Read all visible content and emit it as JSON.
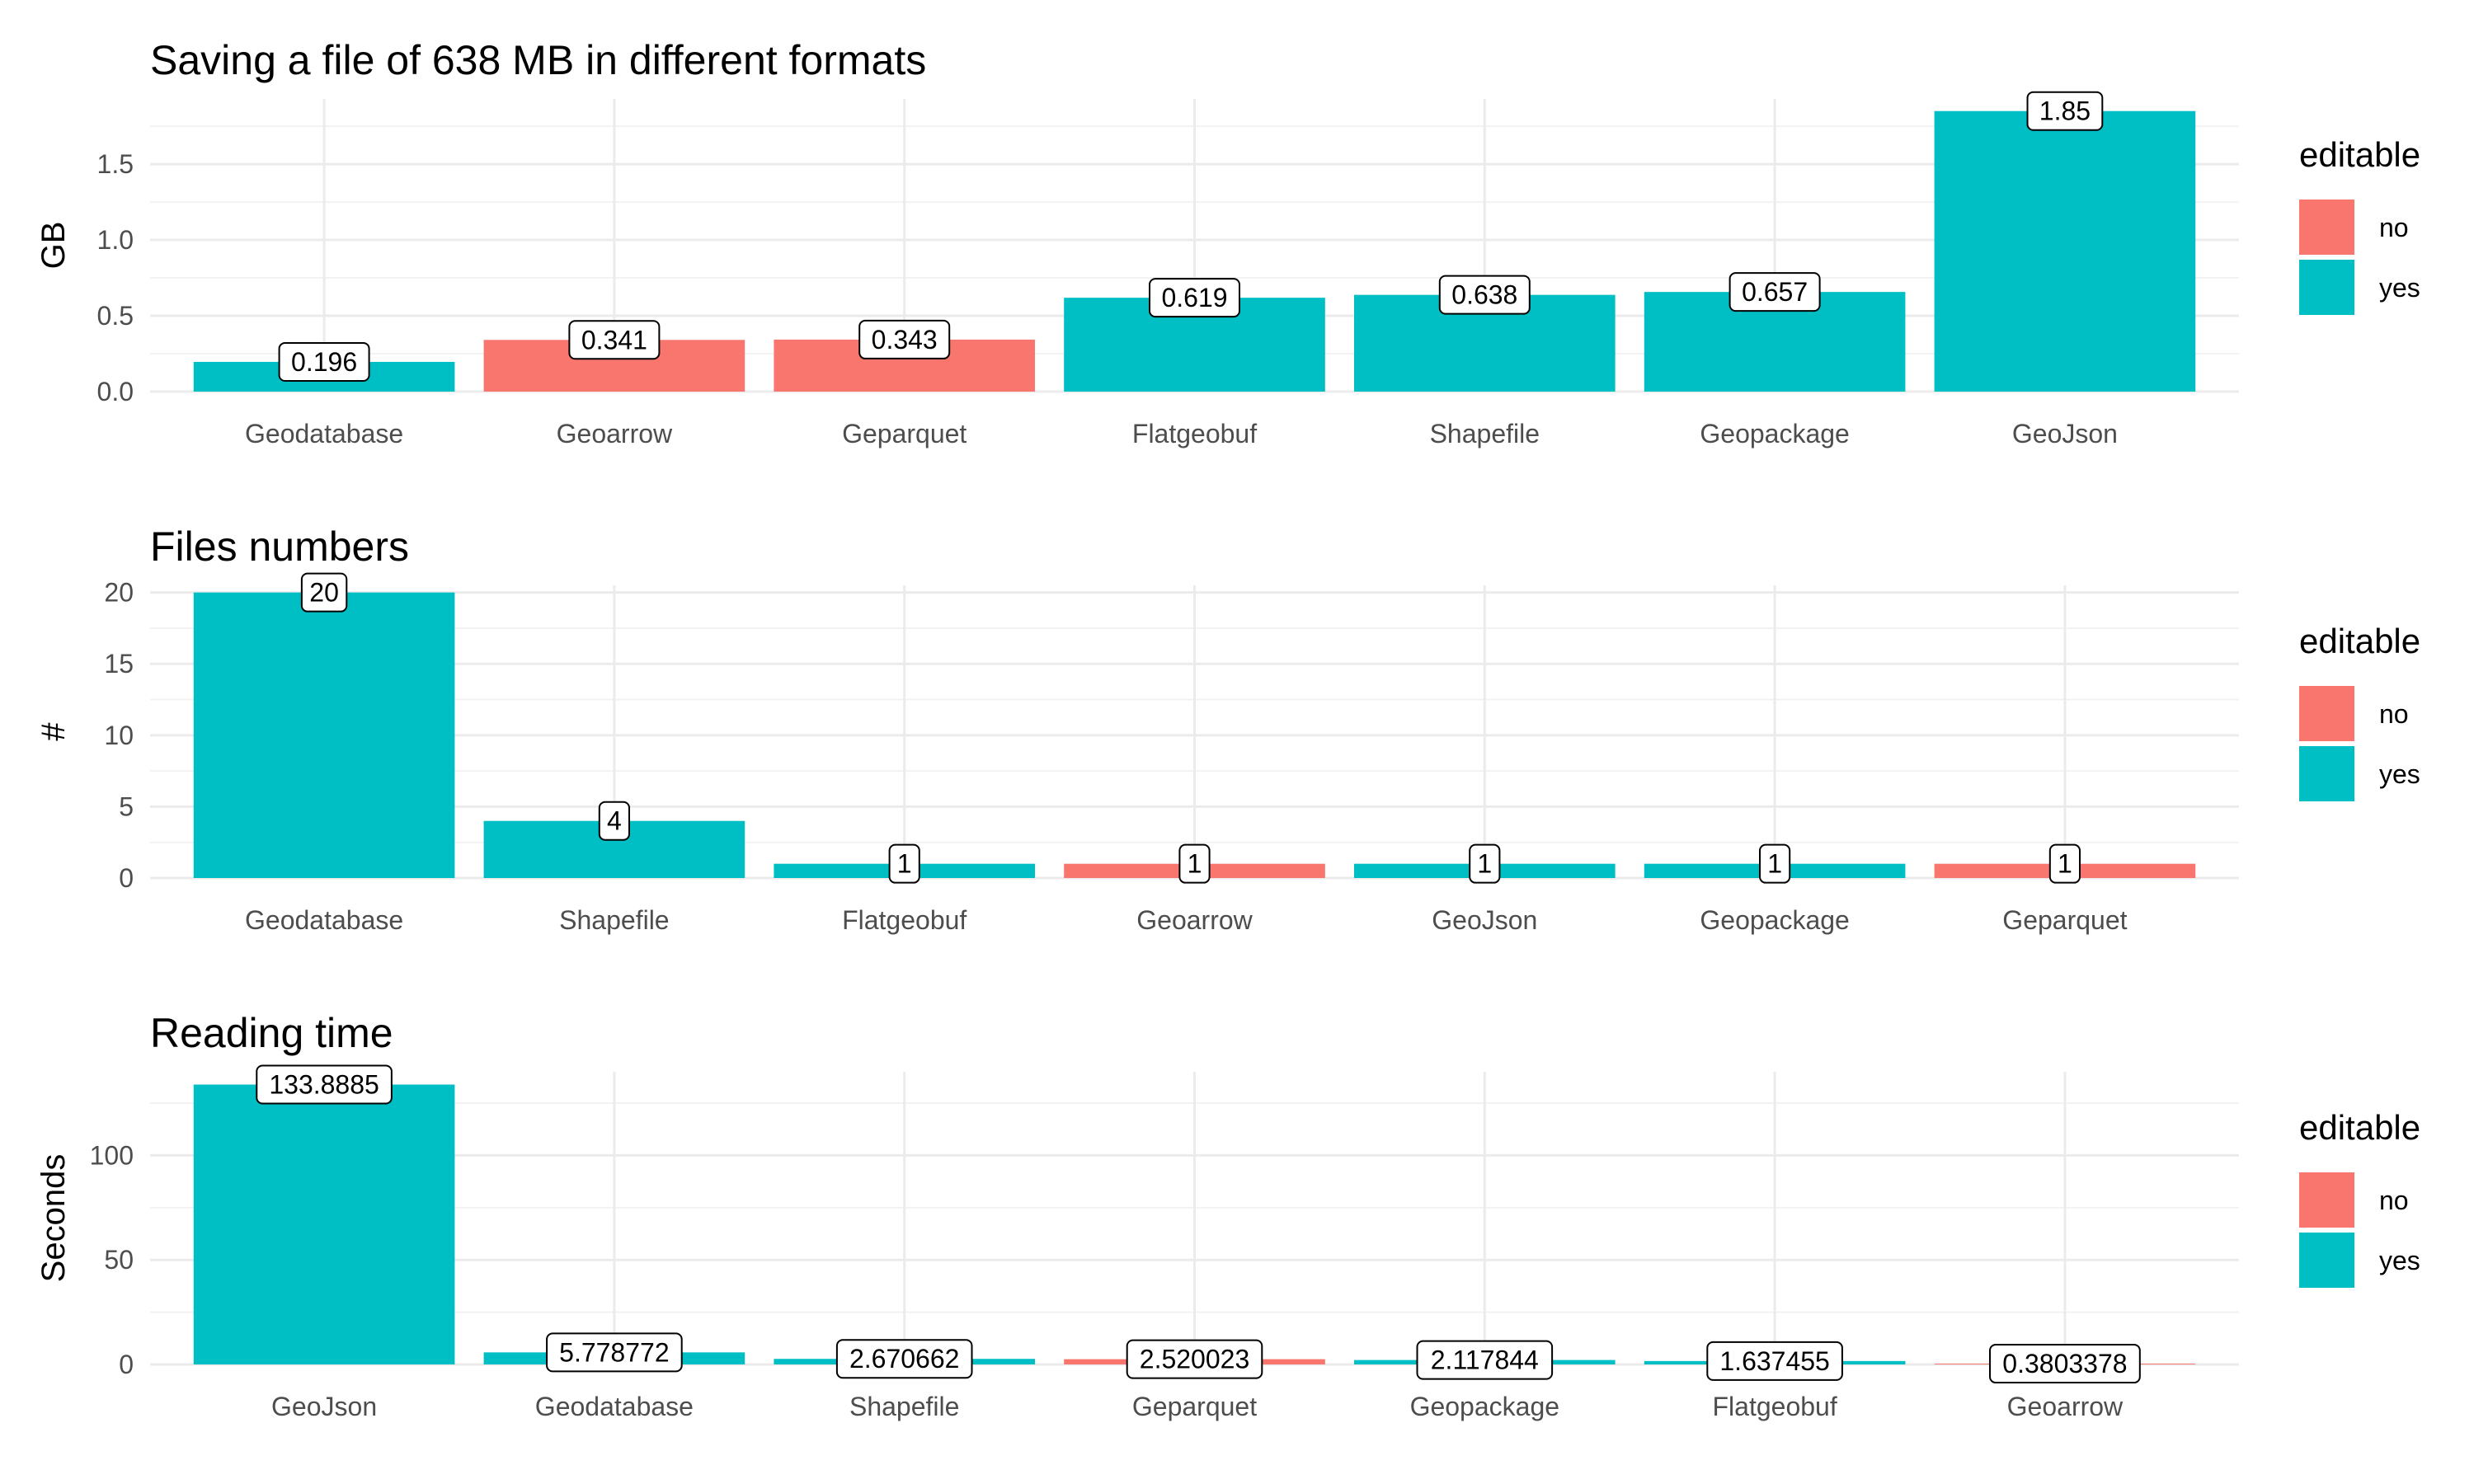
{
  "colors": {
    "no": "#F8766D",
    "yes": "#00BFC4"
  },
  "chart_data": [
    {
      "type": "bar",
      "title": "Saving a file of 638 MB in different formats",
      "ylabel": "GB",
      "xlabel": "",
      "ylim": [
        0,
        1.93
      ],
      "yticks": [
        0.0,
        0.5,
        1.0,
        1.5
      ],
      "ytick_labels": [
        "0.0",
        "0.5",
        "1.0",
        "1.5"
      ],
      "categories": [
        "Geodatabase",
        "Geoarrow",
        "Geparquet",
        "Flatgeobuf",
        "Shapefile",
        "Geopackage",
        "GeoJson"
      ],
      "values": [
        0.196,
        0.341,
        0.343,
        0.619,
        0.638,
        0.657,
        1.85
      ],
      "labels": [
        "0.196",
        "0.341",
        "0.343",
        "0.619",
        "0.638",
        "0.657",
        "1.85"
      ],
      "editable": [
        "yes",
        "no",
        "no",
        "yes",
        "yes",
        "yes",
        "yes"
      ],
      "legend": {
        "title": "editable",
        "entries": [
          "no",
          "yes"
        ],
        "position": "right"
      },
      "grid": true
    },
    {
      "type": "bar",
      "title": "Files numbers",
      "ylabel": "#",
      "xlabel": "",
      "ylim": [
        0,
        20.5
      ],
      "yticks": [
        0,
        5,
        10,
        15,
        20
      ],
      "ytick_labels": [
        "0",
        "5",
        "10",
        "15",
        "20"
      ],
      "categories": [
        "Geodatabase",
        "Shapefile",
        "Flatgeobuf",
        "Geoarrow",
        "GeoJson",
        "Geopackage",
        "Geparquet"
      ],
      "values": [
        20,
        4,
        1,
        1,
        1,
        1,
        1
      ],
      "labels": [
        "20",
        "4",
        "1",
        "1",
        "1",
        "1",
        "1"
      ],
      "editable": [
        "yes",
        "yes",
        "yes",
        "no",
        "yes",
        "yes",
        "no"
      ],
      "legend": {
        "title": "editable",
        "entries": [
          "no",
          "yes"
        ],
        "position": "right"
      },
      "grid": true
    },
    {
      "type": "bar",
      "title": "Reading time",
      "ylabel": "Seconds",
      "xlabel": "",
      "ylim": [
        0,
        140
      ],
      "yticks": [
        0,
        50,
        100
      ],
      "ytick_labels": [
        "0",
        "50",
        "100"
      ],
      "categories": [
        "GeoJson",
        "Geodatabase",
        "Shapefile",
        "Geparquet",
        "Geopackage",
        "Flatgeobuf",
        "Geoarrow"
      ],
      "values": [
        133.8885,
        5.778772,
        2.670662,
        2.520023,
        2.117844,
        1.637455,
        0.3803378
      ],
      "labels": [
        "133.8885",
        "5.778772",
        "2.670662",
        "2.520023",
        "2.117844",
        "1.637455",
        "0.3803378"
      ],
      "editable": [
        "yes",
        "yes",
        "yes",
        "no",
        "yes",
        "yes",
        "no"
      ],
      "legend": {
        "title": "editable",
        "entries": [
          "no",
          "yes"
        ],
        "position": "right"
      },
      "grid": true
    }
  ]
}
